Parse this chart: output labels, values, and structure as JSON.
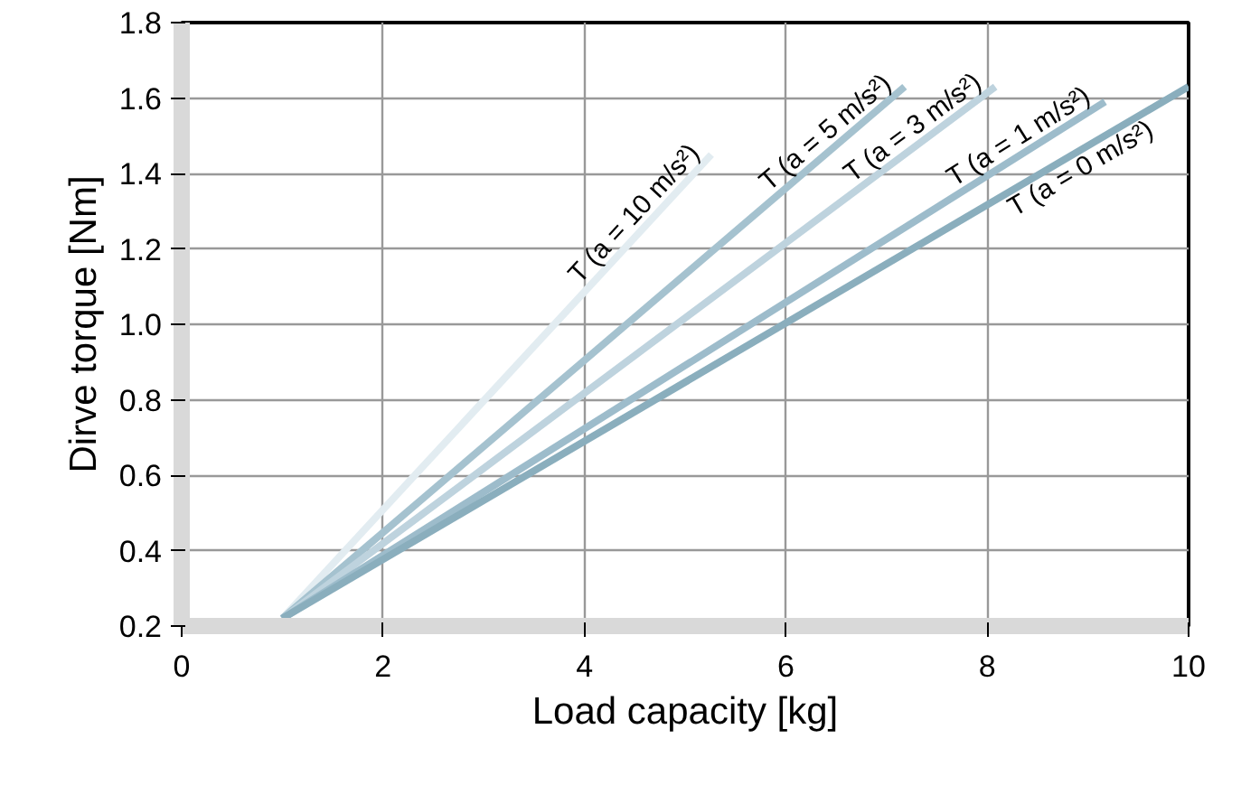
{
  "chart_data": {
    "type": "line",
    "xlabel": "Load capacity [kg]",
    "ylabel": "Dirve torque [Nm]",
    "xlim": [
      0,
      10
    ],
    "ylim": [
      0.2,
      1.8
    ],
    "xticks": [
      0,
      2,
      4,
      6,
      8,
      10
    ],
    "yticks": [
      {
        "value": 0.2,
        "label": "0.2"
      },
      {
        "value": 0.4,
        "label": "0.4"
      },
      {
        "value": 0.6,
        "label": "0.6"
      },
      {
        "value": 0.8,
        "label": "0.8"
      },
      {
        "value": 1.0,
        "label": "1.0"
      },
      {
        "value": 1.2,
        "label": "1.2"
      },
      {
        "value": 1.4,
        "label": "1.4"
      },
      {
        "value": 1.6,
        "label": "1.6"
      },
      {
        "value": 1.8,
        "label": "1.8"
      }
    ],
    "grid": true,
    "marker": "none",
    "line_style": "solid",
    "series": [
      {
        "name": "T (a = 10 m/s²)",
        "color": "#e2ecf1",
        "x": [
          1.0,
          5.26
        ],
        "values": [
          0.22,
          1.45
        ]
      },
      {
        "name": "T (a = 5 m/s²)",
        "color": "#a5c2cf",
        "x": [
          1.0,
          7.18
        ],
        "values": [
          0.22,
          1.63
        ]
      },
      {
        "name": "T (a = 3 m/s²)",
        "color": "#bed3de",
        "x": [
          1.0,
          8.08
        ],
        "values": [
          0.22,
          1.63
        ]
      },
      {
        "name": "T (a = 1 m/s²)",
        "color": "#9dbccb",
        "x": [
          1.0,
          9.17
        ],
        "values": [
          0.22,
          1.59
        ]
      },
      {
        "name": "T (a = 0 m/s²)",
        "color": "#8aaebd",
        "x": [
          1.0,
          10.0
        ],
        "values": [
          0.22,
          1.63
        ]
      }
    ]
  }
}
